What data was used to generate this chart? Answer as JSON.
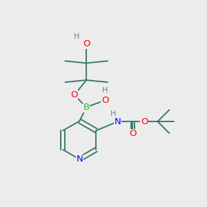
{
  "bg_color": "#ececec",
  "atom_colors": {
    "C": "#3a7a6a",
    "H": "#5a8a7a",
    "O": "#ff0000",
    "N": "#0000ee",
    "B": "#22bb22"
  },
  "bond_color": "#3a7a6a",
  "bond_width": 1.4,
  "font_size_atom": 9.5,
  "font_size_H": 8.0
}
